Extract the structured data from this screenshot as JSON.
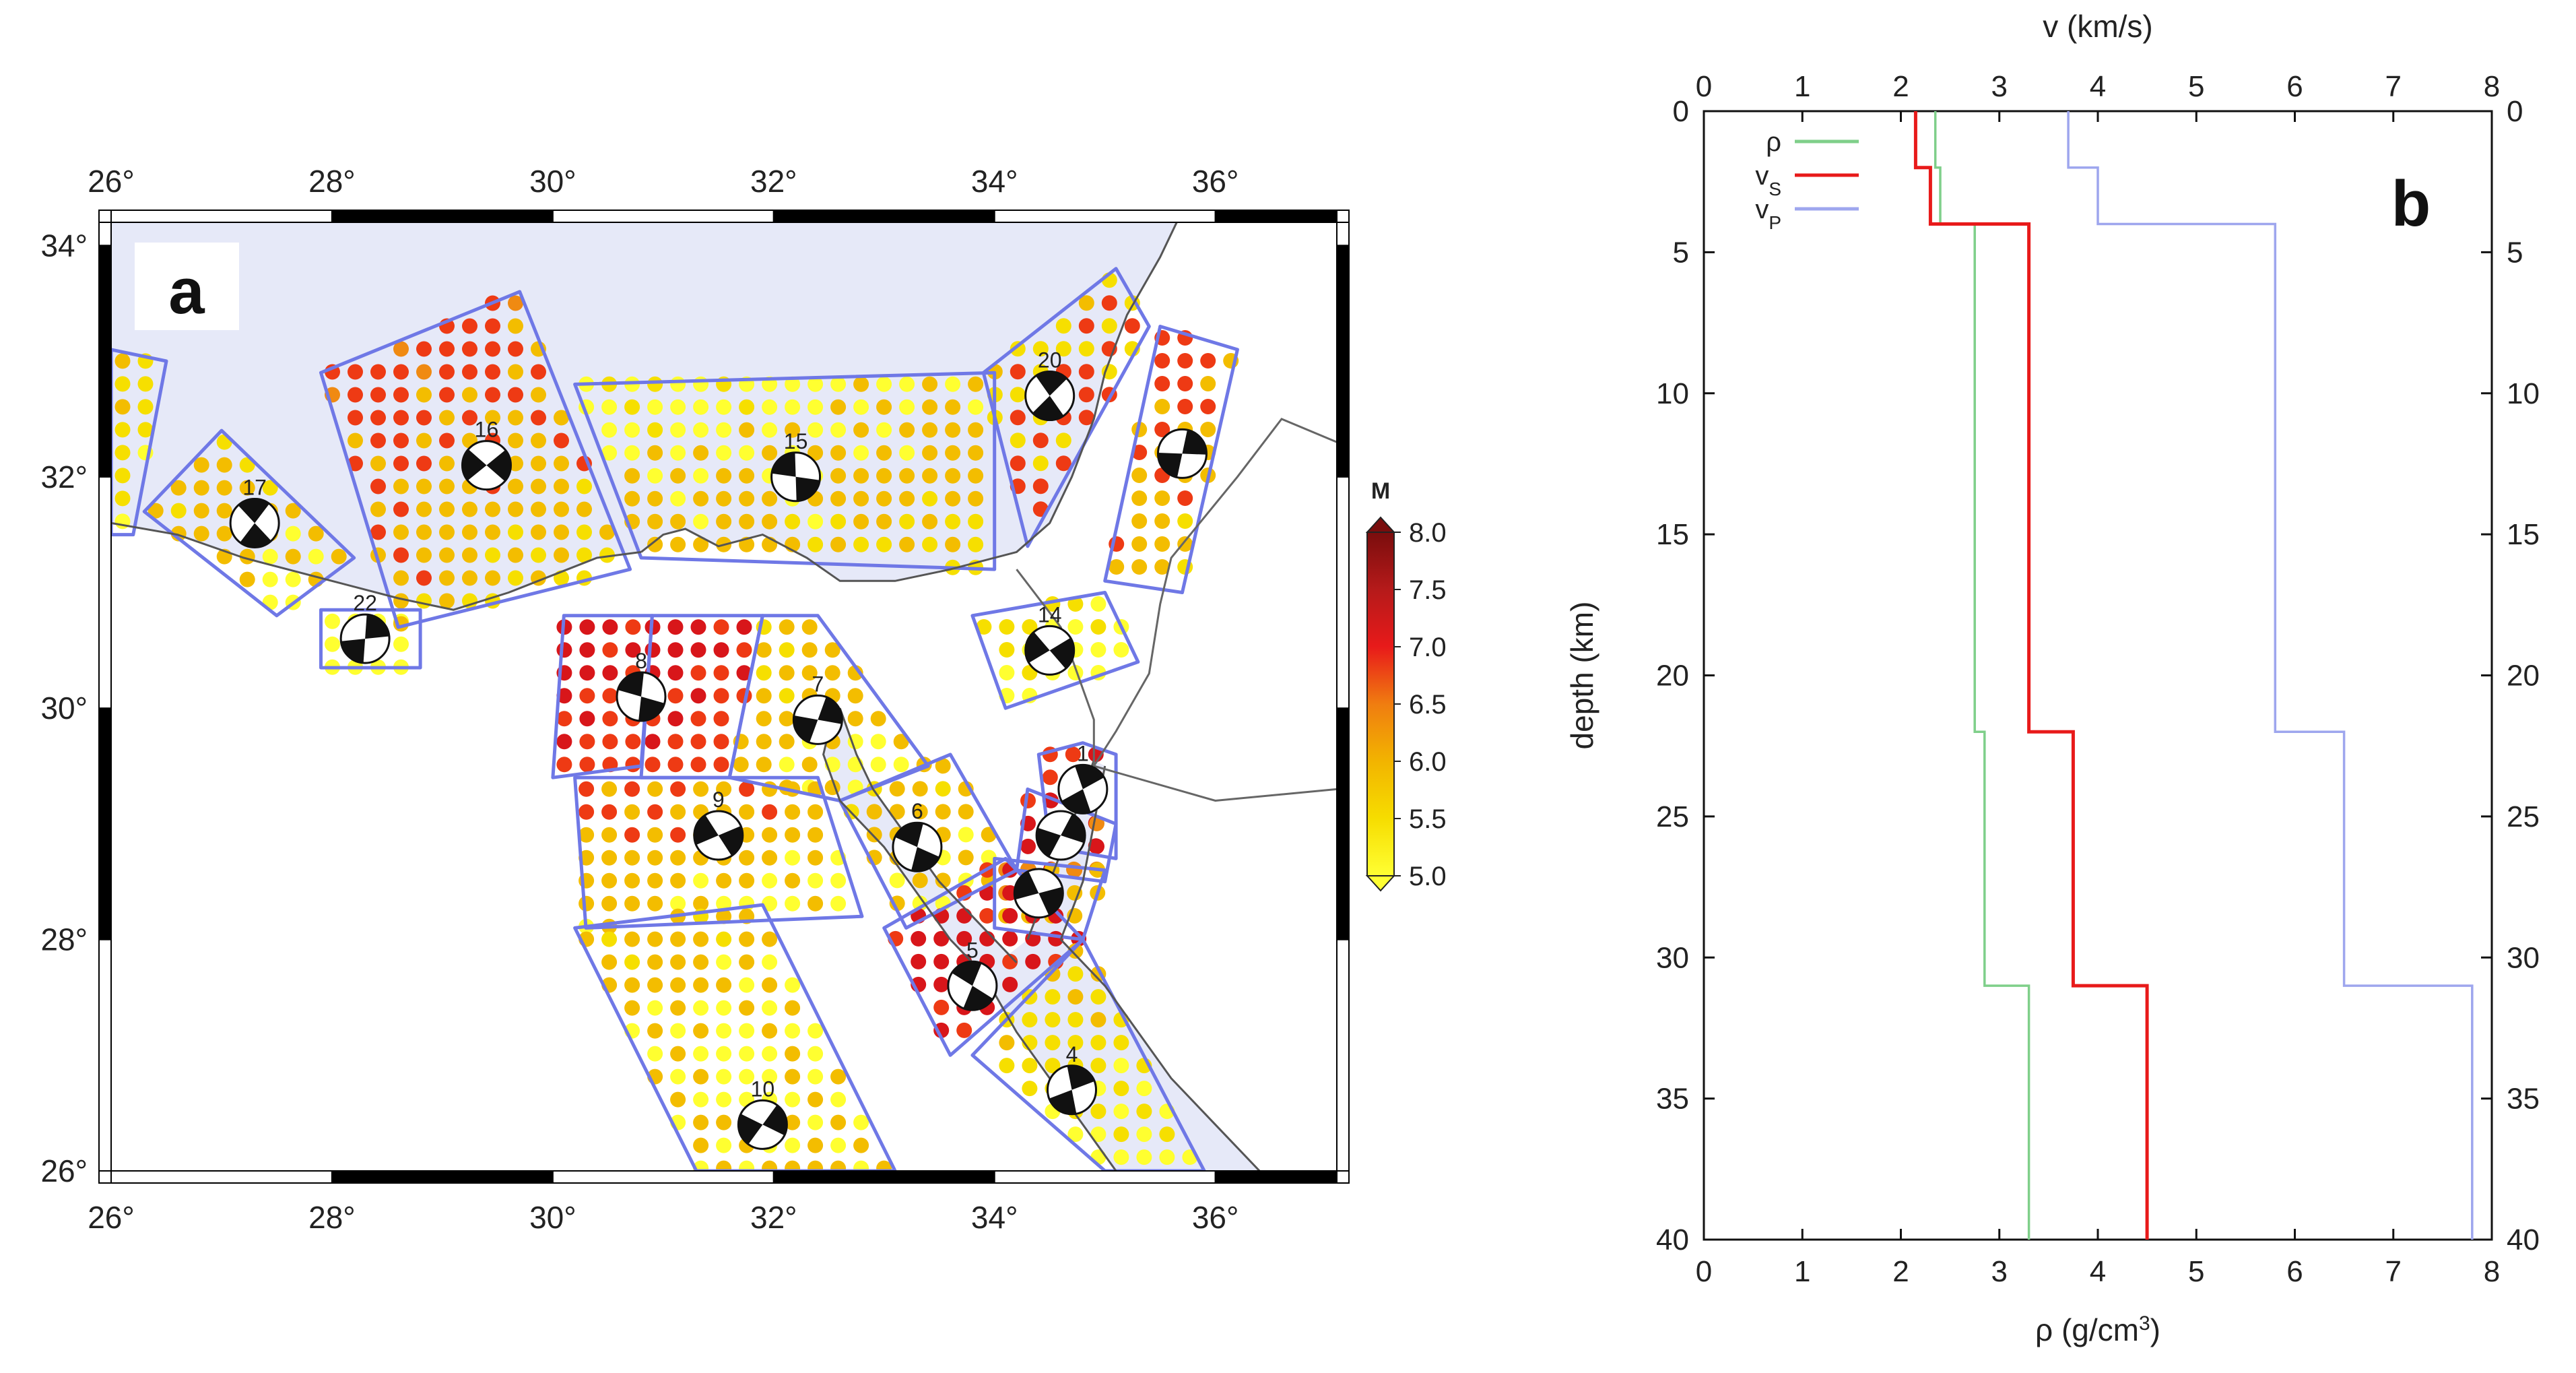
{
  "panel_a": {
    "label": "a",
    "lon_ticks": [
      26,
      28,
      30,
      32,
      34,
      36
    ],
    "lat_ticks": [
      26,
      28,
      30,
      32,
      34
    ],
    "lon_range": [
      26,
      37.1
    ],
    "lat_range": [
      26,
      34.2
    ],
    "degree_symbol": "°",
    "colors": {
      "sea": "#e6e9f8",
      "zone_outline": "#6f78e6",
      "coast": "#555555"
    },
    "colorbar": {
      "title": "M",
      "labels": [
        "8.0",
        "7.5",
        "7.0",
        "6.5",
        "6.0",
        "5.5",
        "5.0"
      ],
      "colors": [
        "#7a0d0d",
        "#b51a1a",
        "#e81a1a",
        "#f07d10",
        "#f2b400",
        "#f6dd00",
        "#ffff33"
      ]
    },
    "zones": [
      {
        "id": "",
        "poly": [
          [
            26.0,
            33.1
          ],
          [
            26.5,
            33.0
          ],
          [
            26.2,
            31.5
          ],
          [
            26.0,
            31.5
          ]
        ],
        "mags": [
          5.5,
          5.2,
          5.0
        ]
      },
      {
        "id": "17",
        "poly": [
          [
            26.3,
            31.7
          ],
          [
            27.0,
            32.4
          ],
          [
            28.2,
            31.3
          ],
          [
            27.5,
            30.8
          ]
        ],
        "mags": [
          5.3,
          5.8,
          5.0
        ],
        "ms": [
          27.3,
          31.6
        ]
      },
      {
        "id": "22",
        "poly": [
          [
            27.9,
            30.85
          ],
          [
            28.8,
            30.85
          ],
          [
            28.8,
            30.35
          ],
          [
            27.9,
            30.35
          ]
        ],
        "mags": [
          5.0
        ],
        "ms": [
          28.3,
          30.6
        ]
      },
      {
        "id": "16",
        "poly": [
          [
            27.9,
            32.9
          ],
          [
            29.7,
            33.6
          ],
          [
            30.7,
            31.2
          ],
          [
            28.6,
            30.7
          ]
        ],
        "mags": [
          6.2,
          6.8,
          5.5,
          5.2
        ],
        "ms": [
          29.4,
          32.1
        ]
      },
      {
        "id": "15",
        "poly": [
          [
            30.2,
            32.8
          ],
          [
            34.0,
            32.9
          ],
          [
            34.0,
            31.2
          ],
          [
            30.8,
            31.3
          ]
        ],
        "mags": [
          5.3,
          5.1,
          5.8,
          5.2
        ],
        "ms": [
          32.2,
          32.0
        ]
      },
      {
        "id": "20",
        "poly": [
          [
            33.9,
            32.9
          ],
          [
            35.1,
            33.8
          ],
          [
            35.4,
            33.3
          ],
          [
            34.3,
            31.4
          ]
        ],
        "mags": [
          5.6,
          5.2,
          6.5,
          5.0
        ],
        "ms": [
          34.5,
          32.7
        ]
      },
      {
        "id": "",
        "poly": [
          [
            35.5,
            33.3
          ],
          [
            36.2,
            33.1
          ],
          [
            35.7,
            31.0
          ],
          [
            35.0,
            31.1
          ]
        ],
        "mags": [
          7.6,
          6.8,
          5.7,
          5.3
        ],
        "ms": [
          35.7,
          32.2
        ]
      },
      {
        "id": "14",
        "poly": [
          [
            33.8,
            30.8
          ],
          [
            35.0,
            31.0
          ],
          [
            35.3,
            30.4
          ],
          [
            34.1,
            30.0
          ]
        ],
        "mags": [
          5.3,
          5.0
        ],
        "ms": [
          34.5,
          30.5
        ]
      },
      {
        "id": "8",
        "poly": [
          [
            30.1,
            30.8
          ],
          [
            30.9,
            30.8
          ],
          [
            30.8,
            29.5
          ],
          [
            30.0,
            29.4
          ]
        ],
        "mags": [
          7.0,
          6.5
        ],
        "ms": [
          30.8,
          30.1
        ]
      },
      {
        "id": "",
        "poly": [
          [
            30.9,
            30.8
          ],
          [
            31.9,
            30.8
          ],
          [
            31.6,
            29.4
          ],
          [
            30.8,
            29.4
          ]
        ],
        "mags": [
          7.1,
          6.8
        ],
        "ms": []
      },
      {
        "id": "7",
        "poly": [
          [
            31.9,
            30.8
          ],
          [
            32.4,
            30.8
          ],
          [
            33.4,
            29.5
          ],
          [
            32.6,
            29.2
          ],
          [
            31.6,
            29.4
          ]
        ],
        "mags": [
          5.2,
          5.6,
          5.0
        ],
        "ms": [
          32.4,
          29.9
        ]
      },
      {
        "id": "9",
        "poly": [
          [
            30.2,
            29.4
          ],
          [
            32.4,
            29.4
          ],
          [
            32.8,
            28.2
          ],
          [
            30.3,
            28.1
          ]
        ],
        "mags": [
          6.5,
          5.7,
          5.1
        ],
        "ms": [
          31.5,
          28.9
        ]
      },
      {
        "id": "6",
        "poly": [
          [
            32.6,
            29.2
          ],
          [
            33.6,
            29.6
          ],
          [
            34.2,
            28.6
          ],
          [
            33.2,
            28.1
          ]
        ],
        "mags": [
          5.4,
          5.8,
          5.1
        ],
        "ms": [
          33.3,
          28.8
        ]
      },
      {
        "id": "1",
        "poly": [
          [
            34.4,
            29.6
          ],
          [
            34.8,
            29.7
          ],
          [
            35.1,
            29.6
          ],
          [
            35.1,
            28.7
          ],
          [
            34.5,
            28.8
          ]
        ],
        "mags": [
          6.9,
          7.1
        ],
        "ms": [
          34.8,
          29.3
        ]
      },
      {
        "id": "",
        "poly": [
          [
            34.3,
            29.3
          ],
          [
            35.1,
            29.0
          ],
          [
            35.0,
            28.5
          ],
          [
            34.2,
            28.6
          ]
        ],
        "mags": [
          6.5,
          7.0,
          6.0
        ],
        "ms": [
          34.6,
          28.9
        ]
      },
      {
        "id": "",
        "poly": [
          [
            34.0,
            28.7
          ],
          [
            35.0,
            28.6
          ],
          [
            34.8,
            28.0
          ],
          [
            34.0,
            28.1
          ]
        ],
        "mags": [
          6.0,
          5.5
        ],
        "ms": [
          34.4,
          28.4
        ]
      },
      {
        "id": "5",
        "poly": [
          [
            33.0,
            28.1
          ],
          [
            34.1,
            28.7
          ],
          [
            34.8,
            28.0
          ],
          [
            33.6,
            27.0
          ]
        ],
        "mags": [
          6.9,
          7.0,
          6.5
        ],
        "ms": [
          33.8,
          27.6
        ]
      },
      {
        "id": "4",
        "poly": [
          [
            33.8,
            27.0
          ],
          [
            34.8,
            28.0
          ],
          [
            35.9,
            26.0
          ],
          [
            35.0,
            26.0
          ]
        ],
        "mags": [
          5.8,
          5.4,
          5.0
        ],
        "ms": [
          34.7,
          26.7
        ]
      },
      {
        "id": "10",
        "poly": [
          [
            30.2,
            28.1
          ],
          [
            31.9,
            28.3
          ],
          [
            33.1,
            26.0
          ],
          [
            31.3,
            26.0
          ]
        ],
        "mags": [
          5.4,
          5.8,
          5.1,
          5.6
        ],
        "ms": [
          31.9,
          26.4
        ]
      }
    ],
    "coast": [
      [
        30.8,
        31.35
      ],
      [
        31.0,
        31.5
      ],
      [
        31.2,
        31.55
      ],
      [
        31.5,
        31.4
      ],
      [
        31.9,
        31.5
      ],
      [
        32.3,
        31.3
      ],
      [
        32.6,
        31.1
      ],
      [
        33.1,
        31.1
      ],
      [
        33.6,
        31.2
      ],
      [
        34.2,
        31.35
      ],
      [
        34.5,
        31.6
      ],
      [
        34.7,
        32.0
      ],
      [
        34.9,
        32.5
      ],
      [
        35.0,
        32.9
      ],
      [
        35.2,
        33.4
      ],
      [
        35.5,
        33.9
      ],
      [
        35.7,
        34.3
      ]
    ],
    "coast_west": [
      [
        26.0,
        31.6
      ],
      [
        26.6,
        31.5
      ],
      [
        27.2,
        31.3
      ],
      [
        28.0,
        31.1
      ],
      [
        28.6,
        30.95
      ],
      [
        29.1,
        30.85
      ],
      [
        29.6,
        31.0
      ],
      [
        30.0,
        31.15
      ],
      [
        30.4,
        31.3
      ],
      [
        30.8,
        31.35
      ]
    ],
    "gulf_suez": [
      [
        32.55,
        30.0
      ],
      [
        32.45,
        29.6
      ],
      [
        32.6,
        29.2
      ],
      [
        33.0,
        28.8
      ],
      [
        33.3,
        28.4
      ],
      [
        33.6,
        28.0
      ],
      [
        33.9,
        27.7
      ]
    ],
    "gulf_suez_e": [
      [
        32.6,
        30.0
      ],
      [
        32.75,
        29.6
      ],
      [
        32.9,
        29.3
      ],
      [
        33.2,
        28.9
      ],
      [
        33.5,
        28.5
      ],
      [
        33.8,
        28.2
      ],
      [
        34.2,
        27.8
      ]
    ],
    "gulf_aqaba_w": [
      [
        34.9,
        29.55
      ],
      [
        34.7,
        29.0
      ],
      [
        34.5,
        28.5
      ],
      [
        34.3,
        28.0
      ]
    ],
    "gulf_aqaba_e": [
      [
        35.0,
        29.5
      ],
      [
        34.9,
        29.0
      ],
      [
        34.8,
        28.5
      ],
      [
        34.6,
        28.0
      ]
    ],
    "red_sea_w": [
      [
        33.9,
        27.7
      ],
      [
        34.2,
        27.2
      ],
      [
        34.5,
        26.8
      ],
      [
        34.8,
        26.4
      ],
      [
        35.1,
        26.0
      ]
    ],
    "red_sea_e": [
      [
        34.6,
        28.0
      ],
      [
        35.0,
        27.6
      ],
      [
        35.3,
        27.2
      ],
      [
        35.6,
        26.8
      ],
      [
        36.0,
        26.4
      ],
      [
        36.4,
        26.0
      ]
    ],
    "border": [
      [
        34.9,
        29.5
      ],
      [
        35.1,
        29.8
      ],
      [
        35.4,
        30.3
      ],
      [
        35.5,
        30.9
      ],
      [
        35.6,
        31.3
      ],
      [
        36.2,
        32.0
      ],
      [
        36.6,
        32.5
      ],
      [
        37.1,
        32.3
      ]
    ],
    "border2": [
      [
        34.9,
        29.5
      ],
      [
        36.0,
        29.2
      ],
      [
        37.1,
        29.3
      ]
    ]
  },
  "panel_b": {
    "label": "b",
    "top_axis_label": "v (km/s)",
    "bottom_axis_label": "ρ (g/cm³)",
    "bottom_axis_label_main": "ρ (g/cm",
    "bottom_axis_label_sup": "3",
    "bottom_axis_label_end": ")",
    "y_axis_label": "depth (km)",
    "x_ticks": [
      0,
      1,
      2,
      3,
      4,
      5,
      6,
      7,
      8
    ],
    "y_ticks": [
      0,
      5,
      10,
      15,
      20,
      25,
      30,
      35,
      40
    ],
    "xlim": [
      0,
      8
    ],
    "ylim": [
      0,
      40
    ],
    "legend": [
      {
        "name": "ρ",
        "sub": "",
        "color": "#7fcf8a"
      },
      {
        "name": "v",
        "sub": "S",
        "color": "#e81a1a"
      },
      {
        "name": "v",
        "sub": "P",
        "color": "#9ea6ee"
      }
    ]
  },
  "chart_data": {
    "type": "line",
    "xlabel": "v (km/s)",
    "x2label": "ρ (g/cm³)",
    "ylabel": "depth (km)",
    "xlim": [
      0,
      8
    ],
    "ylim": [
      40,
      0
    ],
    "grid": false,
    "legend_placement": "top-left",
    "series": [
      {
        "name": "ρ",
        "color": "#7fcf8a",
        "x": [
          2.35,
          2.35,
          2.4,
          2.4,
          2.75,
          2.75,
          2.85,
          2.85,
          3.3,
          3.3
        ],
        "y": [
          0,
          2,
          2,
          4,
          4,
          22,
          22,
          31,
          31,
          40
        ]
      },
      {
        "name": "vS",
        "color": "#e81a1a",
        "x": [
          2.15,
          2.15,
          2.3,
          2.3,
          3.3,
          3.3,
          3.75,
          3.75,
          4.5,
          4.5
        ],
        "y": [
          0,
          2,
          2,
          4,
          4,
          22,
          22,
          31,
          31,
          40
        ]
      },
      {
        "name": "vP",
        "color": "#9ea6ee",
        "x": [
          3.7,
          3.7,
          4.0,
          4.0,
          5.8,
          5.8,
          6.5,
          6.5,
          7.8,
          7.8
        ],
        "y": [
          0,
          2,
          2,
          4,
          4,
          22,
          22,
          31,
          31,
          40
        ]
      }
    ]
  }
}
